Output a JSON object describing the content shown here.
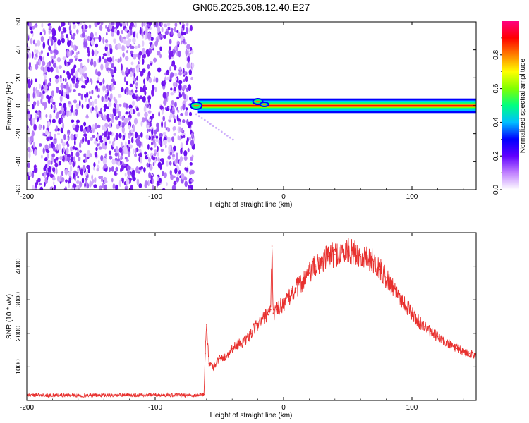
{
  "title": "GN05.2025.308.12.40.E27",
  "chart_data": [
    {
      "type": "heatmap",
      "xlabel": "Height of straight line (km)",
      "ylabel": "Frequency (Hz)",
      "xlim": [
        -200,
        150
      ],
      "ylim": [
        -60,
        60
      ],
      "xticks": [
        -200,
        -100,
        0,
        100
      ],
      "xtick_labels": [
        "-200",
        "-100",
        "0",
        "100"
      ],
      "yticks": [
        -60,
        -40,
        -20,
        0,
        20,
        40,
        60
      ],
      "ytick_labels": [
        "-60",
        "-40",
        "-20",
        "0",
        "20",
        "40",
        "60"
      ],
      "noise_region_x": [
        -200,
        -70
      ],
      "signal_start_x": -70,
      "signal_center_freq": 0,
      "signal_band_halfwidth": 2,
      "colorbar": {
        "label": "Normalized spectral amplitude",
        "range": [
          0,
          1
        ],
        "ticks": [
          0,
          0.2,
          0.4,
          0.6,
          0.8
        ],
        "tick_labels": [
          "0.0",
          "0.2",
          "0.4",
          "0.6",
          "0.8"
        ],
        "colors": [
          "#ffffff",
          "#c080ff",
          "#6000ff",
          "#0000ff",
          "#00c0ff",
          "#00ff80",
          "#80ff00",
          "#ffff00",
          "#ff8000",
          "#ff0000",
          "#ff0080"
        ]
      }
    },
    {
      "type": "line",
      "xlabel": "Height of straight line (km)",
      "ylabel": "SNR (10 * v/v)",
      "xlim": [
        -200,
        150
      ],
      "ylim": [
        0,
        5000
      ],
      "xticks": [
        -200,
        -100,
        0,
        100
      ],
      "xtick_labels": [
        "-200",
        "-100",
        "0",
        "100"
      ],
      "yticks": [
        1000,
        2000,
        3000,
        4000
      ],
      "ytick_labels": [
        "1000",
        "2000",
        "3000",
        "4000"
      ],
      "color": "#e8312f",
      "series": [
        {
          "name": "SNR",
          "x": [
            -200,
            -150,
            -100,
            -70,
            -62,
            -61,
            -60,
            -58,
            -55,
            -50,
            -45,
            -40,
            -35,
            -30,
            -25,
            -20,
            -15,
            -12,
            -10,
            -9,
            -8,
            -5,
            0,
            5,
            10,
            15,
            20,
            25,
            30,
            35,
            40,
            45,
            50,
            55,
            60,
            65,
            70,
            75,
            80,
            85,
            90,
            95,
            100,
            105,
            110,
            115,
            120,
            125,
            130,
            135,
            140,
            145,
            150
          ],
          "y": [
            160,
            150,
            160,
            150,
            180,
            1400,
            2250,
            1100,
            1000,
            1250,
            1300,
            1550,
            1700,
            1750,
            2000,
            2300,
            2450,
            2550,
            2700,
            4600,
            2600,
            2700,
            2900,
            3100,
            3350,
            3550,
            3800,
            4000,
            4150,
            4300,
            4350,
            4400,
            4450,
            4400,
            4350,
            4250,
            4150,
            3900,
            3650,
            3400,
            3150,
            2850,
            2600,
            2350,
            2200,
            2000,
            1900,
            1750,
            1650,
            1550,
            1450,
            1400,
            1350
          ]
        }
      ]
    }
  ]
}
